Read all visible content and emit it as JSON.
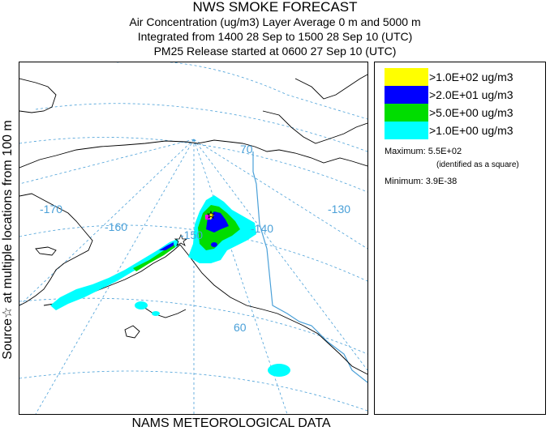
{
  "title": {
    "line1": "NWS SMOKE FORECAST",
    "line2": "Air Concentration (ug/m3) Layer Average    0 m and  5000 m",
    "line3": "Integrated from 1400 28 Sep to 1500 28 Sep 10 (UTC)",
    "line4": "PM25 Release started at 0600 27 Sep 10 (UTC)"
  },
  "side_label": "Source☆  at multiple locations   from   100 m",
  "footer": "NAMS METEOROLOGICAL DATA",
  "map": {
    "graticule_labels": {
      "lon_170": "-170",
      "lon_160": "-160",
      "lon_150": "-150",
      "lon_140": "-140",
      "lon_130": "-130",
      "lat_70": "70",
      "lat_60": "60"
    },
    "colors": {
      "land": "#000000",
      "graticule": "#4aa0d8",
      "boundary": "#4aa0d8"
    }
  },
  "legend": {
    "items": [
      {
        "label": ">1.0E+02 ug/m3",
        "color": "#ffff00"
      },
      {
        "label": ">2.0E+01 ug/m3",
        "color": "#0000ff"
      },
      {
        "label": ">5.0E+00 ug/m3",
        "color": "#00dd00"
      },
      {
        "label": ">1.0E+00 ug/m3",
        "color": "#00ffff"
      }
    ],
    "maximum_label": "Maximum:",
    "maximum_value": "5.5E+02",
    "maximum_note": "(identified as a square)",
    "minimum_label": "Minimum:",
    "minimum_value": "3.9E-38"
  }
}
